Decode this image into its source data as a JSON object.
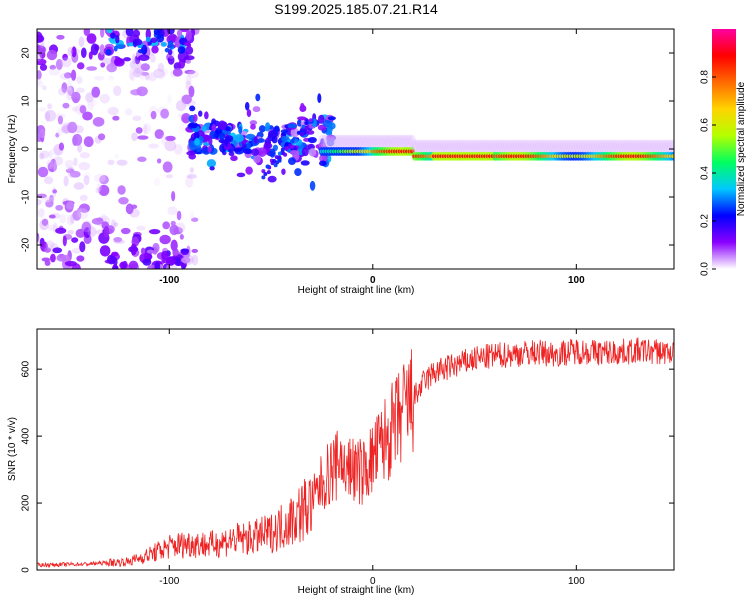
{
  "title": "S199.2025.185.07.21.R14",
  "chart_data": [
    {
      "type": "heatmap",
      "xlabel": "Height of straight line (km)",
      "ylabel": "Frequency (Hz)",
      "xlim": [
        -165,
        148
      ],
      "ylim": [
        -25,
        25
      ],
      "x_ticks": [
        "-100",
        "0",
        "100"
      ],
      "y_ticks": [
        "-20",
        "-10",
        "0",
        "10",
        "20"
      ],
      "colorbar": {
        "label": "Normalized spectral amplitude",
        "range": [
          0.0,
          1.0
        ],
        "ticks": [
          "0.0",
          "0.2",
          "0.4",
          "0.6",
          "0.8"
        ],
        "colors": [
          "#ffffff",
          "#8a00ff",
          "#0000ff",
          "#00c8ff",
          "#00ff60",
          "#b4ff00",
          "#ffd400",
          "#ff6a00",
          "#ff0000",
          "#ff00a0"
        ]
      },
      "carrier_track": [
        {
          "x": -88,
          "freq": -1,
          "amp": 0.25
        },
        {
          "x": -60,
          "freq": 1,
          "amp": 0.3
        },
        {
          "x": -40,
          "freq": 2,
          "amp": 0.35
        },
        {
          "x": -20,
          "freq": -1,
          "amp": 0.55
        },
        {
          "x": 0,
          "freq": -0.5,
          "amp": 0.75
        },
        {
          "x": 40,
          "freq": -1,
          "amp": 0.9
        },
        {
          "x": 70,
          "freq": -1.5,
          "amp": 0.85
        },
        {
          "x": 100,
          "freq": -1.5,
          "amp": 0.8
        },
        {
          "x": 148,
          "freq": -1.5,
          "amp": 0.7
        }
      ]
    },
    {
      "type": "line",
      "xlabel": "Height of straight line (km)",
      "ylabel": "SNR (10 * v/v)",
      "xlim": [
        -165,
        148
      ],
      "ylim": [
        0,
        720
      ],
      "x_ticks": [
        "-100",
        "0",
        "100"
      ],
      "y_ticks": [
        "0",
        "200",
        "400",
        "600"
      ],
      "color": "#ee2222",
      "series": [
        {
          "x": [
            -165,
            -140,
            -120,
            -110,
            -100,
            -90,
            -80,
            -70,
            -60,
            -50,
            -40,
            -30,
            -25,
            -20,
            -15,
            -10,
            -5,
            0,
            5,
            10,
            15,
            20,
            25,
            30,
            40,
            50,
            60,
            70,
            80,
            90,
            100,
            110,
            120,
            130,
            148
          ],
          "values": [
            15,
            18,
            25,
            45,
            70,
            80,
            75,
            90,
            95,
            110,
            150,
            200,
            260,
            300,
            320,
            300,
            290,
            330,
            380,
            420,
            470,
            510,
            560,
            590,
            610,
            630,
            640,
            645,
            650,
            645,
            655,
            650,
            650,
            655,
            650
          ]
        }
      ]
    }
  ]
}
